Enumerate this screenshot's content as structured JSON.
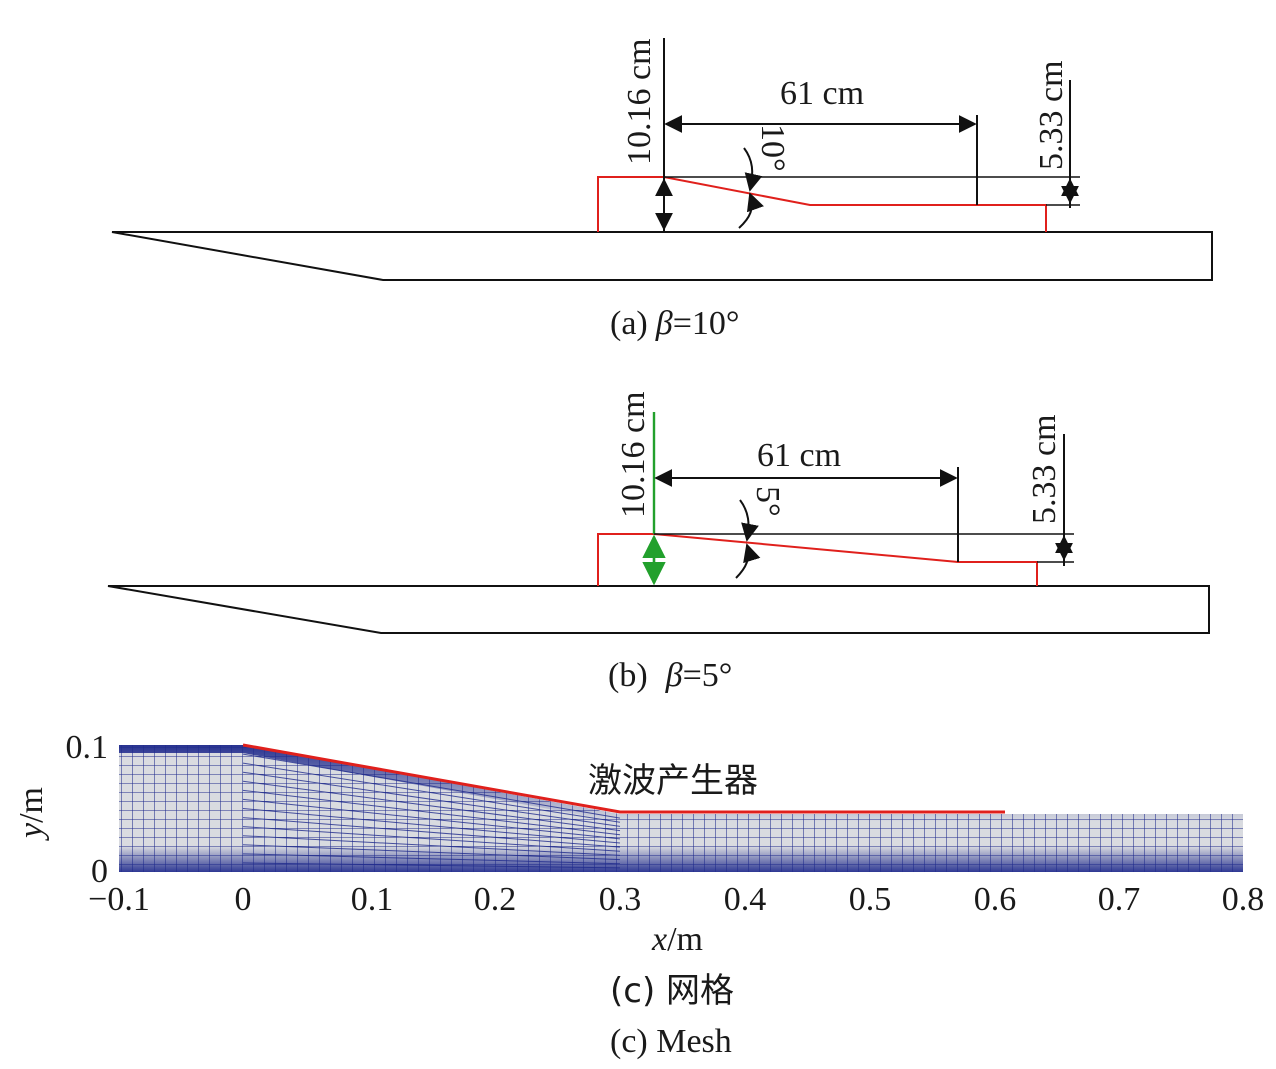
{
  "panel_a": {
    "dim_height": "10.16 cm",
    "dim_length": "61 cm",
    "dim_angle": "10°",
    "dim_exit": "5.33 cm",
    "caption_prefix": "(a)",
    "caption_symbol": "β",
    "caption_value": "=10°"
  },
  "panel_b": {
    "dim_height": "10.16 cm",
    "dim_length": "61 cm",
    "dim_angle": "5°",
    "dim_exit": "5.33 cm",
    "caption_prefix": "(b)",
    "caption_symbol": "β",
    "caption_value": "=5°"
  },
  "panel_c": {
    "annotation": "激波产生器",
    "y_axis_label_var": "y",
    "y_axis_label_unit": "/m",
    "x_axis_label_var": "x",
    "x_axis_label_unit": "/m",
    "x_ticks": [
      "−0.1",
      "0",
      "0.1",
      "0.2",
      "0.3",
      "0.4",
      "0.5",
      "0.6",
      "0.7",
      "0.8"
    ],
    "y_ticks": [
      "0",
      "0.1"
    ],
    "caption_cn": "(c) 网格",
    "caption_en": "(c) Mesh"
  },
  "colors": {
    "outline": "#111111",
    "generator": "#e0201c",
    "green_arrow": "#22a02c",
    "mesh_line": "#1f2a8c",
    "mesh_fill": "#d9dbe0"
  }
}
